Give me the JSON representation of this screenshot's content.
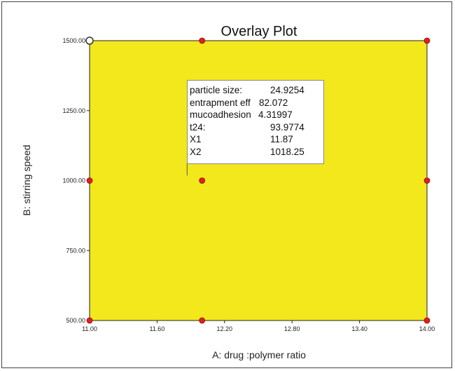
{
  "chart_data": {
    "type": "scatter",
    "title": "Overlay Plot",
    "xlabel": "A: drug :polymer ratio",
    "ylabel": "B: stirring speed",
    "xlim": [
      11.0,
      14.0
    ],
    "ylim": [
      500,
      1500
    ],
    "x_ticks": [
      "11.00",
      "11.60",
      "12.20",
      "12.80",
      "13.40",
      "14.00"
    ],
    "x_tick_values": [
      11.0,
      11.6,
      12.2,
      12.8,
      13.4,
      14.0
    ],
    "y_ticks": [
      "500.00",
      "750.00",
      "1000.00",
      "1250.00",
      "1500.00"
    ],
    "y_tick_values": [
      500,
      750,
      1000,
      1250,
      1500
    ],
    "region_color": "#f2e81c",
    "point_color": "#e0201e",
    "points": [
      {
        "x": 11.0,
        "y": 1500,
        "style": "open"
      },
      {
        "x": 12.0,
        "y": 1500
      },
      {
        "x": 14.0,
        "y": 1500
      },
      {
        "x": 11.0,
        "y": 1000
      },
      {
        "x": 12.0,
        "y": 1000
      },
      {
        "x": 14.0,
        "y": 1000
      },
      {
        "x": 11.0,
        "y": 500
      },
      {
        "x": 12.0,
        "y": 500
      },
      {
        "x": 14.0,
        "y": 500
      }
    ],
    "flag": {
      "x": 11.87,
      "y": 1018.25
    },
    "annotation": {
      "rows": [
        {
          "label": "particle size:",
          "value": "24.9254"
        },
        {
          "label": "entrapment eff",
          "value": "82.072"
        },
        {
          "label": "mucoadhesion",
          "value": "4.31997"
        },
        {
          "label": "t24:",
          "value": "93.9774"
        },
        {
          "label": "X1",
          "value": "11.87"
        },
        {
          "label": "X2",
          "value": "1018.25"
        }
      ]
    }
  }
}
